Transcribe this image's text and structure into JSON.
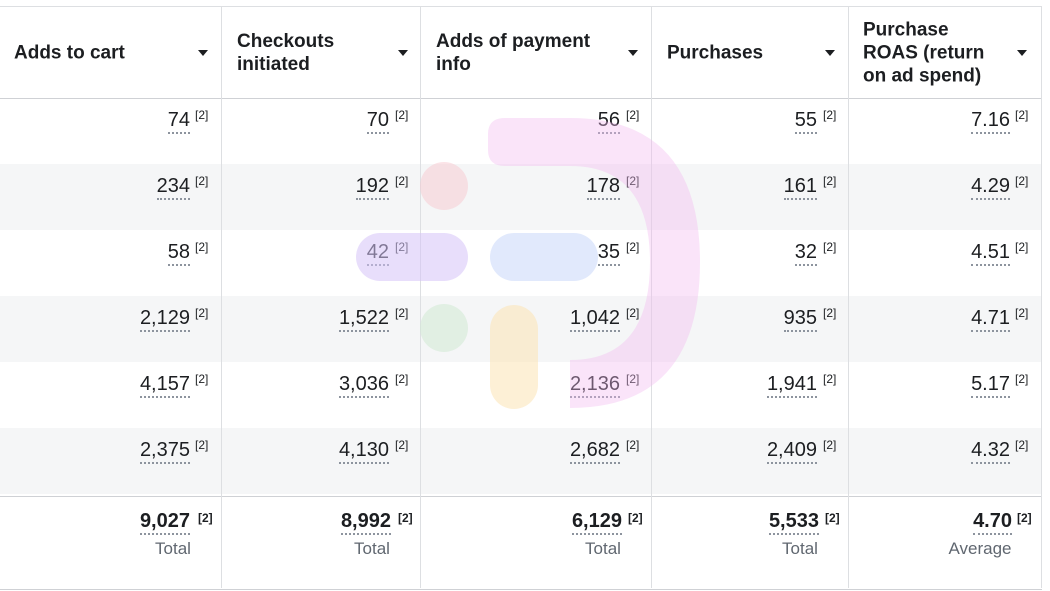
{
  "columns": [
    {
      "label": "Adds to cart"
    },
    {
      "label": "Checkouts\ninitiated"
    },
    {
      "label": "Adds of payment\ninfo"
    },
    {
      "label": "Purchases"
    },
    {
      "label": "Purchase\nROAS (return\non ad spend)"
    }
  ],
  "rows": [
    [
      "74",
      "70",
      "56",
      "55",
      "7.16"
    ],
    [
      "234",
      "192",
      "178",
      "161",
      "4.29"
    ],
    [
      "58",
      "42",
      "35",
      "32",
      "4.51"
    ],
    [
      "2,129",
      "1,522",
      "1,042",
      "935",
      "4.71"
    ],
    [
      "4,157",
      "3,036",
      "2,136",
      "1,941",
      "5.17"
    ],
    [
      "2,375",
      "4,130",
      "2,682",
      "2,409",
      "4.32"
    ]
  ],
  "footnote_marker": "[2]",
  "totals": [
    {
      "value": "9,027",
      "label": "Total"
    },
    {
      "value": "8,992",
      "label": "Total"
    },
    {
      "value": "6,129",
      "label": "Total"
    },
    {
      "value": "5,533",
      "label": "Total"
    },
    {
      "value": "4.70",
      "label": "Average"
    }
  ],
  "sort_icon": "caret-down-icon",
  "colors": {
    "text": "#1c1e21",
    "muted": "#606770",
    "grid": "#dddfe2",
    "row_alt": "#f5f6f7"
  }
}
